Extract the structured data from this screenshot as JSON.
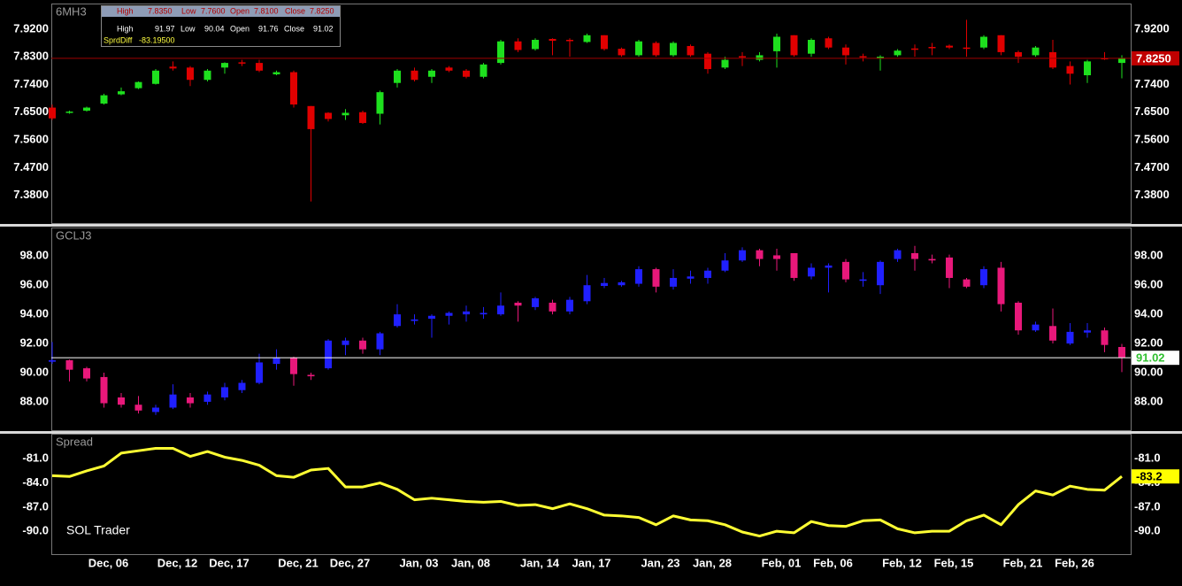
{
  "info": {
    "rows": [
      {
        "items": [
          {
            "label": "High",
            "value": "7.8350"
          },
          {
            "label": "Low",
            "value": "7.7600"
          },
          {
            "label": "Open",
            "value": "7.8100"
          },
          {
            "label": "Close",
            "value": "7.8250"
          }
        ]
      },
      {
        "items": [
          {
            "label": "High",
            "value": "91.97"
          },
          {
            "label": "Low",
            "value": "90.04"
          },
          {
            "label": "Open",
            "value": "91.76"
          },
          {
            "label": "Close",
            "value": "91.02"
          }
        ]
      },
      {
        "items": [
          {
            "label": "SprdDiff",
            "value": "-83.19500"
          }
        ]
      }
    ]
  },
  "chart_data": [
    {
      "type": "candlestick",
      "title": "6MH3",
      "up_color": "#1ee01e",
      "down_color": "#e00000",
      "last_line_color": "#a00000",
      "last_box_color": "#c00000",
      "last_text_color": "#ffffff",
      "open": [
        7.665,
        7.648,
        7.655,
        7.678,
        7.708,
        7.728,
        7.742,
        7.798,
        7.795,
        7.755,
        7.795,
        7.812,
        7.81,
        7.773,
        7.78,
        7.67,
        7.648,
        7.64,
        7.65,
        7.645,
        7.745,
        7.785,
        7.765,
        7.795,
        7.785,
        7.765,
        7.81,
        7.88,
        7.855,
        7.888,
        7.885,
        7.878,
        7.9,
        7.856,
        7.835,
        7.875,
        7.835,
        7.865,
        7.84,
        7.795,
        7.832,
        7.82,
        7.848,
        7.9,
        7.84,
        7.89,
        7.86,
        7.832,
        7.825,
        7.835,
        7.857,
        7.862,
        7.866,
        7.86,
        7.86,
        7.9,
        7.845,
        7.835,
        7.845,
        7.8,
        7.77,
        7.826,
        7.81
      ],
      "high": [
        7.675,
        7.655,
        7.668,
        7.71,
        7.73,
        7.75,
        7.79,
        7.815,
        7.8,
        7.79,
        7.812,
        7.82,
        7.82,
        7.785,
        7.785,
        7.67,
        7.65,
        7.66,
        7.655,
        7.72,
        7.79,
        7.795,
        7.79,
        7.8,
        7.79,
        7.81,
        7.885,
        7.89,
        7.89,
        7.89,
        7.89,
        7.905,
        7.9,
        7.86,
        7.885,
        7.88,
        7.88,
        7.87,
        7.845,
        7.83,
        7.845,
        7.845,
        7.905,
        7.9,
        7.89,
        7.895,
        7.87,
        7.84,
        7.835,
        7.855,
        7.87,
        7.875,
        7.87,
        7.95,
        7.9,
        7.9,
        7.85,
        7.865,
        7.885,
        7.815,
        7.82,
        7.845,
        7.835
      ],
      "low": [
        7.625,
        7.645,
        7.652,
        7.675,
        7.705,
        7.725,
        7.74,
        7.785,
        7.735,
        7.75,
        7.775,
        7.8,
        7.78,
        7.77,
        7.665,
        7.36,
        7.62,
        7.625,
        7.612,
        7.61,
        7.73,
        7.75,
        7.745,
        7.78,
        7.76,
        7.76,
        7.805,
        7.845,
        7.85,
        7.835,
        7.83,
        7.875,
        7.85,
        7.83,
        7.83,
        7.83,
        7.83,
        7.83,
        7.775,
        7.79,
        7.8,
        7.815,
        7.795,
        7.83,
        7.83,
        7.855,
        7.805,
        7.815,
        7.785,
        7.83,
        7.83,
        7.835,
        7.855,
        7.83,
        7.855,
        7.835,
        7.81,
        7.83,
        7.79,
        7.74,
        7.745,
        7.82,
        7.76
      ],
      "close": [
        7.63,
        7.652,
        7.665,
        7.705,
        7.718,
        7.748,
        7.785,
        7.792,
        7.755,
        7.785,
        7.81,
        7.81,
        7.785,
        7.78,
        7.675,
        7.595,
        7.628,
        7.648,
        7.615,
        7.715,
        7.785,
        7.755,
        7.785,
        7.785,
        7.765,
        7.805,
        7.88,
        7.852,
        7.885,
        7.882,
        7.884,
        7.9,
        7.855,
        7.835,
        7.88,
        7.835,
        7.875,
        7.835,
        7.79,
        7.82,
        7.83,
        7.835,
        7.895,
        7.835,
        7.885,
        7.86,
        7.835,
        7.83,
        7.83,
        7.85,
        7.855,
        7.86,
        7.86,
        7.857,
        7.895,
        7.845,
        7.83,
        7.86,
        7.795,
        7.775,
        7.815,
        7.825,
        7.825
      ],
      "last": {
        "value": 7.825,
        "label": "7.8250"
      },
      "ylim": [
        7.29,
        8.0
      ],
      "yticks": [
        {
          "value": 7.92,
          "label": "7.9200"
        },
        {
          "value": 7.83,
          "label": "7.8300"
        },
        {
          "value": 7.74,
          "label": "7.7400"
        },
        {
          "value": 7.65,
          "label": "7.6500"
        },
        {
          "value": 7.56,
          "label": "7.5600"
        },
        {
          "value": 7.47,
          "label": "7.4700"
        },
        {
          "value": 7.38,
          "label": "7.3800"
        }
      ]
    },
    {
      "type": "candlestick",
      "title": "GCLJ3",
      "up_color": "#2020ff",
      "down_color": "#e8187a",
      "last_line_color": "#ffffff",
      "last_box_color": "#ffffff",
      "last_text_color": "#30c030",
      "open": [
        90.75,
        90.85,
        90.3,
        89.7,
        88.3,
        87.8,
        87.3,
        87.6,
        88.3,
        88.0,
        88.3,
        88.8,
        89.3,
        90.6,
        91.0,
        89.85,
        90.3,
        91.9,
        92.2,
        91.6,
        93.2,
        93.55,
        93.7,
        93.9,
        94.0,
        94.0,
        94.0,
        94.8,
        94.5,
        94.8,
        94.2,
        94.9,
        95.95,
        96.0,
        96.1,
        97.1,
        95.9,
        96.45,
        96.5,
        97.0,
        97.7,
        98.4,
        98.05,
        98.2,
        96.6,
        97.2,
        97.6,
        96.3,
        96.0,
        97.8,
        98.2,
        97.8,
        97.9,
        96.4,
        96.0,
        97.2,
        94.8,
        92.9,
        93.2,
        92.0,
        92.75,
        92.9,
        91.76
      ],
      "high": [
        92.1,
        90.9,
        90.4,
        90.0,
        88.6,
        88.4,
        87.8,
        89.2,
        88.6,
        88.7,
        89.3,
        89.5,
        91.3,
        91.6,
        91.1,
        90.0,
        92.3,
        92.4,
        92.4,
        92.8,
        94.7,
        94.0,
        94.0,
        94.2,
        94.6,
        94.5,
        95.5,
        94.9,
        95.2,
        95.0,
        95.2,
        96.7,
        96.5,
        96.3,
        97.3,
        97.2,
        97.1,
        97.0,
        97.2,
        98.2,
        98.6,
        98.5,
        98.5,
        98.2,
        97.5,
        97.5,
        97.8,
        96.9,
        97.7,
        98.5,
        98.7,
        98.1,
        98.1,
        96.5,
        97.3,
        97.6,
        94.9,
        93.5,
        94.4,
        93.4,
        93.4,
        93.1,
        91.97
      ],
      "low": [
        90.6,
        89.4,
        89.4,
        87.6,
        87.6,
        87.2,
        87.1,
        87.5,
        87.6,
        87.8,
        88.1,
        88.6,
        89.2,
        90.2,
        89.1,
        89.5,
        90.2,
        91.2,
        91.3,
        91.2,
        93.1,
        93.3,
        92.4,
        93.3,
        93.5,
        93.7,
        93.9,
        93.5,
        94.3,
        94.0,
        94.0,
        94.7,
        95.8,
        95.9,
        95.9,
        95.5,
        95.7,
        96.1,
        96.1,
        96.9,
        97.6,
        97.3,
        97.0,
        96.3,
        96.4,
        95.5,
        96.2,
        95.9,
        95.4,
        97.6,
        97.0,
        97.5,
        95.8,
        95.8,
        95.8,
        94.2,
        92.6,
        92.8,
        92.0,
        91.9,
        92.4,
        91.4,
        90.04
      ],
      "close": [
        90.85,
        90.2,
        89.6,
        87.9,
        87.8,
        87.4,
        87.6,
        88.5,
        87.9,
        88.5,
        89.0,
        89.3,
        90.7,
        91.0,
        89.9,
        89.75,
        92.2,
        92.2,
        91.6,
        92.7,
        94.0,
        93.65,
        93.9,
        94.1,
        94.2,
        94.1,
        94.6,
        94.6,
        95.1,
        94.2,
        95.0,
        96.0,
        96.15,
        96.2,
        97.1,
        95.9,
        96.5,
        96.6,
        97.0,
        97.7,
        98.4,
        97.8,
        97.8,
        96.5,
        97.2,
        97.35,
        96.4,
        96.4,
        97.6,
        98.4,
        97.8,
        97.7,
        96.5,
        95.9,
        97.1,
        94.7,
        92.9,
        93.3,
        92.2,
        92.8,
        92.9,
        91.9,
        91.02
      ],
      "last": {
        "value": 91.02,
        "label": "91.02"
      },
      "ylim": [
        86.05,
        99.9
      ],
      "yticks": [
        {
          "value": 98,
          "label": "98.00"
        },
        {
          "value": 96,
          "label": "96.00"
        },
        {
          "value": 94,
          "label": "94.00"
        },
        {
          "value": 92,
          "label": "92.00"
        },
        {
          "value": 90,
          "label": "90.00"
        },
        {
          "value": 88,
          "label": "88.00"
        }
      ]
    },
    {
      "type": "line",
      "title": "Spread",
      "color": "#ffff33",
      "annotation": "SOL Trader",
      "last_box_color": "#ffff00",
      "last_text_color": "#000000",
      "categories": [
        null,
        null,
        null,
        "Dec, 06",
        null,
        null,
        null,
        "Dec, 12",
        null,
        null,
        "Dec, 17",
        null,
        null,
        null,
        "Dec, 21",
        null,
        null,
        "Dec, 27",
        null,
        null,
        null,
        "Jan, 03",
        null,
        null,
        "Jan, 08",
        null,
        null,
        null,
        "Jan, 14",
        null,
        null,
        "Jan, 17",
        null,
        null,
        null,
        "Jan, 23",
        null,
        null,
        "Jan, 28",
        null,
        null,
        null,
        "Feb, 01",
        null,
        null,
        "Feb, 06",
        null,
        null,
        null,
        "Feb, 12",
        null,
        null,
        "Feb, 15",
        null,
        null,
        null,
        "Feb, 21",
        null,
        null,
        "Feb, 26",
        null,
        null,
        null
      ],
      "values": [
        -83.1,
        -83.2,
        -82.5,
        -81.9,
        -80.3,
        -80.0,
        -79.7,
        -79.7,
        -80.7,
        -80.1,
        -80.8,
        -81.2,
        -81.8,
        -83.1,
        -83.3,
        -82.4,
        -82.2,
        -84.5,
        -84.5,
        -84.0,
        -84.8,
        -86.1,
        -85.9,
        -86.1,
        -86.3,
        -86.4,
        -86.3,
        -86.8,
        -86.7,
        -87.2,
        -86.6,
        -87.2,
        -88.0,
        -88.1,
        -88.3,
        -89.2,
        -88.1,
        -88.6,
        -88.7,
        -89.2,
        -90.1,
        -90.6,
        -90.0,
        -90.2,
        -88.8,
        -89.3,
        -89.4,
        -88.7,
        -88.6,
        -89.7,
        -90.2,
        -90.0,
        -90.0,
        -88.7,
        -88.0,
        -89.2,
        -86.7,
        -85.0,
        -85.5,
        -84.4,
        -84.8,
        -84.9,
        -83.195
      ],
      "last": {
        "value": -83.195,
        "label": "-83.2"
      },
      "ylim": [
        -92.85,
        -78.0
      ],
      "yticks": [
        {
          "value": -81,
          "label": "-81.0"
        },
        {
          "value": -84,
          "label": "-84.0"
        },
        {
          "value": -87,
          "label": "-87.0"
        },
        {
          "value": -90,
          "label": "-90.0"
        }
      ]
    }
  ]
}
